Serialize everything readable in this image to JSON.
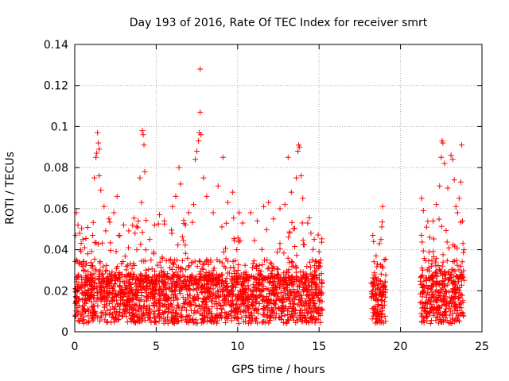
{
  "chart_data": {
    "type": "scatter",
    "title": "Day 193 of 2016, Rate Of TEC Index for receiver smrt",
    "xlabel": "GPS time / hours",
    "ylabel": "ROTI / TECUs",
    "xlim": [
      0,
      25
    ],
    "ylim": [
      0,
      0.14
    ],
    "xticks": [
      "0",
      "5",
      "10",
      "15",
      "20",
      "25"
    ],
    "yticks": [
      "0",
      "0.02",
      "0.04",
      "0.06",
      "0.08",
      "0.1",
      "0.12",
      "0.14"
    ],
    "grid": true,
    "marker": "+",
    "marker_color": "#ff0000",
    "data_windows_hours": [
      [
        0.0,
        15.2
      ],
      [
        18.2,
        19.1
      ],
      [
        21.2,
        23.9
      ]
    ],
    "points": [
      [
        0.1,
        0.058
      ],
      [
        0.2,
        0.052
      ],
      [
        0.3,
        0.048
      ],
      [
        0.5,
        0.045
      ],
      [
        0.6,
        0.041
      ],
      [
        0.8,
        0.038
      ],
      [
        1.1,
        0.047
      ],
      [
        1.2,
        0.075
      ],
      [
        1.3,
        0.085
      ],
      [
        1.35,
        0.087
      ],
      [
        1.4,
        0.097
      ],
      [
        1.45,
        0.092
      ],
      [
        1.5,
        0.089
      ],
      [
        1.5,
        0.076
      ],
      [
        1.6,
        0.069
      ],
      [
        1.8,
        0.061
      ],
      [
        2.1,
        0.055
      ],
      [
        2.4,
        0.058
      ],
      [
        2.6,
        0.066
      ],
      [
        2.7,
        0.047
      ],
      [
        3.0,
        0.052
      ],
      [
        3.3,
        0.041
      ],
      [
        3.7,
        0.048
      ],
      [
        3.9,
        0.054
      ],
      [
        4.0,
        0.075
      ],
      [
        4.1,
        0.063
      ],
      [
        4.15,
        0.098
      ],
      [
        4.2,
        0.096
      ],
      [
        4.25,
        0.091
      ],
      [
        4.3,
        0.078
      ],
      [
        4.6,
        0.045
      ],
      [
        4.9,
        0.052
      ],
      [
        5.2,
        0.057
      ],
      [
        5.5,
        0.054
      ],
      [
        6.0,
        0.061
      ],
      [
        6.2,
        0.066
      ],
      [
        6.4,
        0.08
      ],
      [
        6.5,
        0.072
      ],
      [
        6.8,
        0.052
      ],
      [
        7.0,
        0.058
      ],
      [
        7.3,
        0.062
      ],
      [
        7.4,
        0.084
      ],
      [
        7.5,
        0.088
      ],
      [
        7.6,
        0.093
      ],
      [
        7.65,
        0.097
      ],
      [
        7.7,
        0.128
      ],
      [
        7.7,
        0.107
      ],
      [
        7.75,
        0.096
      ],
      [
        7.9,
        0.075
      ],
      [
        8.1,
        0.066
      ],
      [
        8.5,
        0.058
      ],
      [
        8.8,
        0.071
      ],
      [
        9.1,
        0.085
      ],
      [
        9.4,
        0.063
      ],
      [
        9.7,
        0.068
      ],
      [
        10.1,
        0.058
      ],
      [
        10.3,
        0.053
      ],
      [
        10.8,
        0.058
      ],
      [
        11.2,
        0.054
      ],
      [
        11.6,
        0.061
      ],
      [
        11.9,
        0.063
      ],
      [
        12.2,
        0.055
      ],
      [
        12.6,
        0.06
      ],
      [
        12.9,
        0.062
      ],
      [
        13.1,
        0.085
      ],
      [
        13.3,
        0.068
      ],
      [
        13.6,
        0.075
      ],
      [
        13.7,
        0.088
      ],
      [
        13.75,
        0.091
      ],
      [
        13.8,
        0.09
      ],
      [
        13.9,
        0.076
      ],
      [
        14.0,
        0.065
      ],
      [
        14.3,
        0.053
      ],
      [
        14.5,
        0.048
      ],
      [
        14.7,
        0.045
      ],
      [
        15.0,
        0.039
      ],
      [
        15.1,
        0.035
      ],
      [
        18.3,
        0.047
      ],
      [
        18.35,
        0.044
      ],
      [
        18.5,
        0.037
      ],
      [
        18.7,
        0.043
      ],
      [
        18.8,
        0.045
      ],
      [
        18.9,
        0.061
      ],
      [
        19.0,
        0.035
      ],
      [
        21.3,
        0.065
      ],
      [
        21.4,
        0.059
      ],
      [
        21.6,
        0.051
      ],
      [
        21.8,
        0.046
      ],
      [
        22.0,
        0.054
      ],
      [
        22.2,
        0.062
      ],
      [
        22.4,
        0.071
      ],
      [
        22.5,
        0.085
      ],
      [
        22.55,
        0.093
      ],
      [
        22.6,
        0.092
      ],
      [
        22.7,
        0.082
      ],
      [
        22.9,
        0.07
      ],
      [
        23.1,
        0.086
      ],
      [
        23.2,
        0.084
      ],
      [
        23.3,
        0.074
      ],
      [
        23.4,
        0.061
      ],
      [
        23.5,
        0.058
      ],
      [
        23.6,
        0.065
      ],
      [
        23.7,
        0.073
      ],
      [
        23.75,
        0.091
      ],
      [
        23.8,
        0.054
      ]
    ]
  }
}
